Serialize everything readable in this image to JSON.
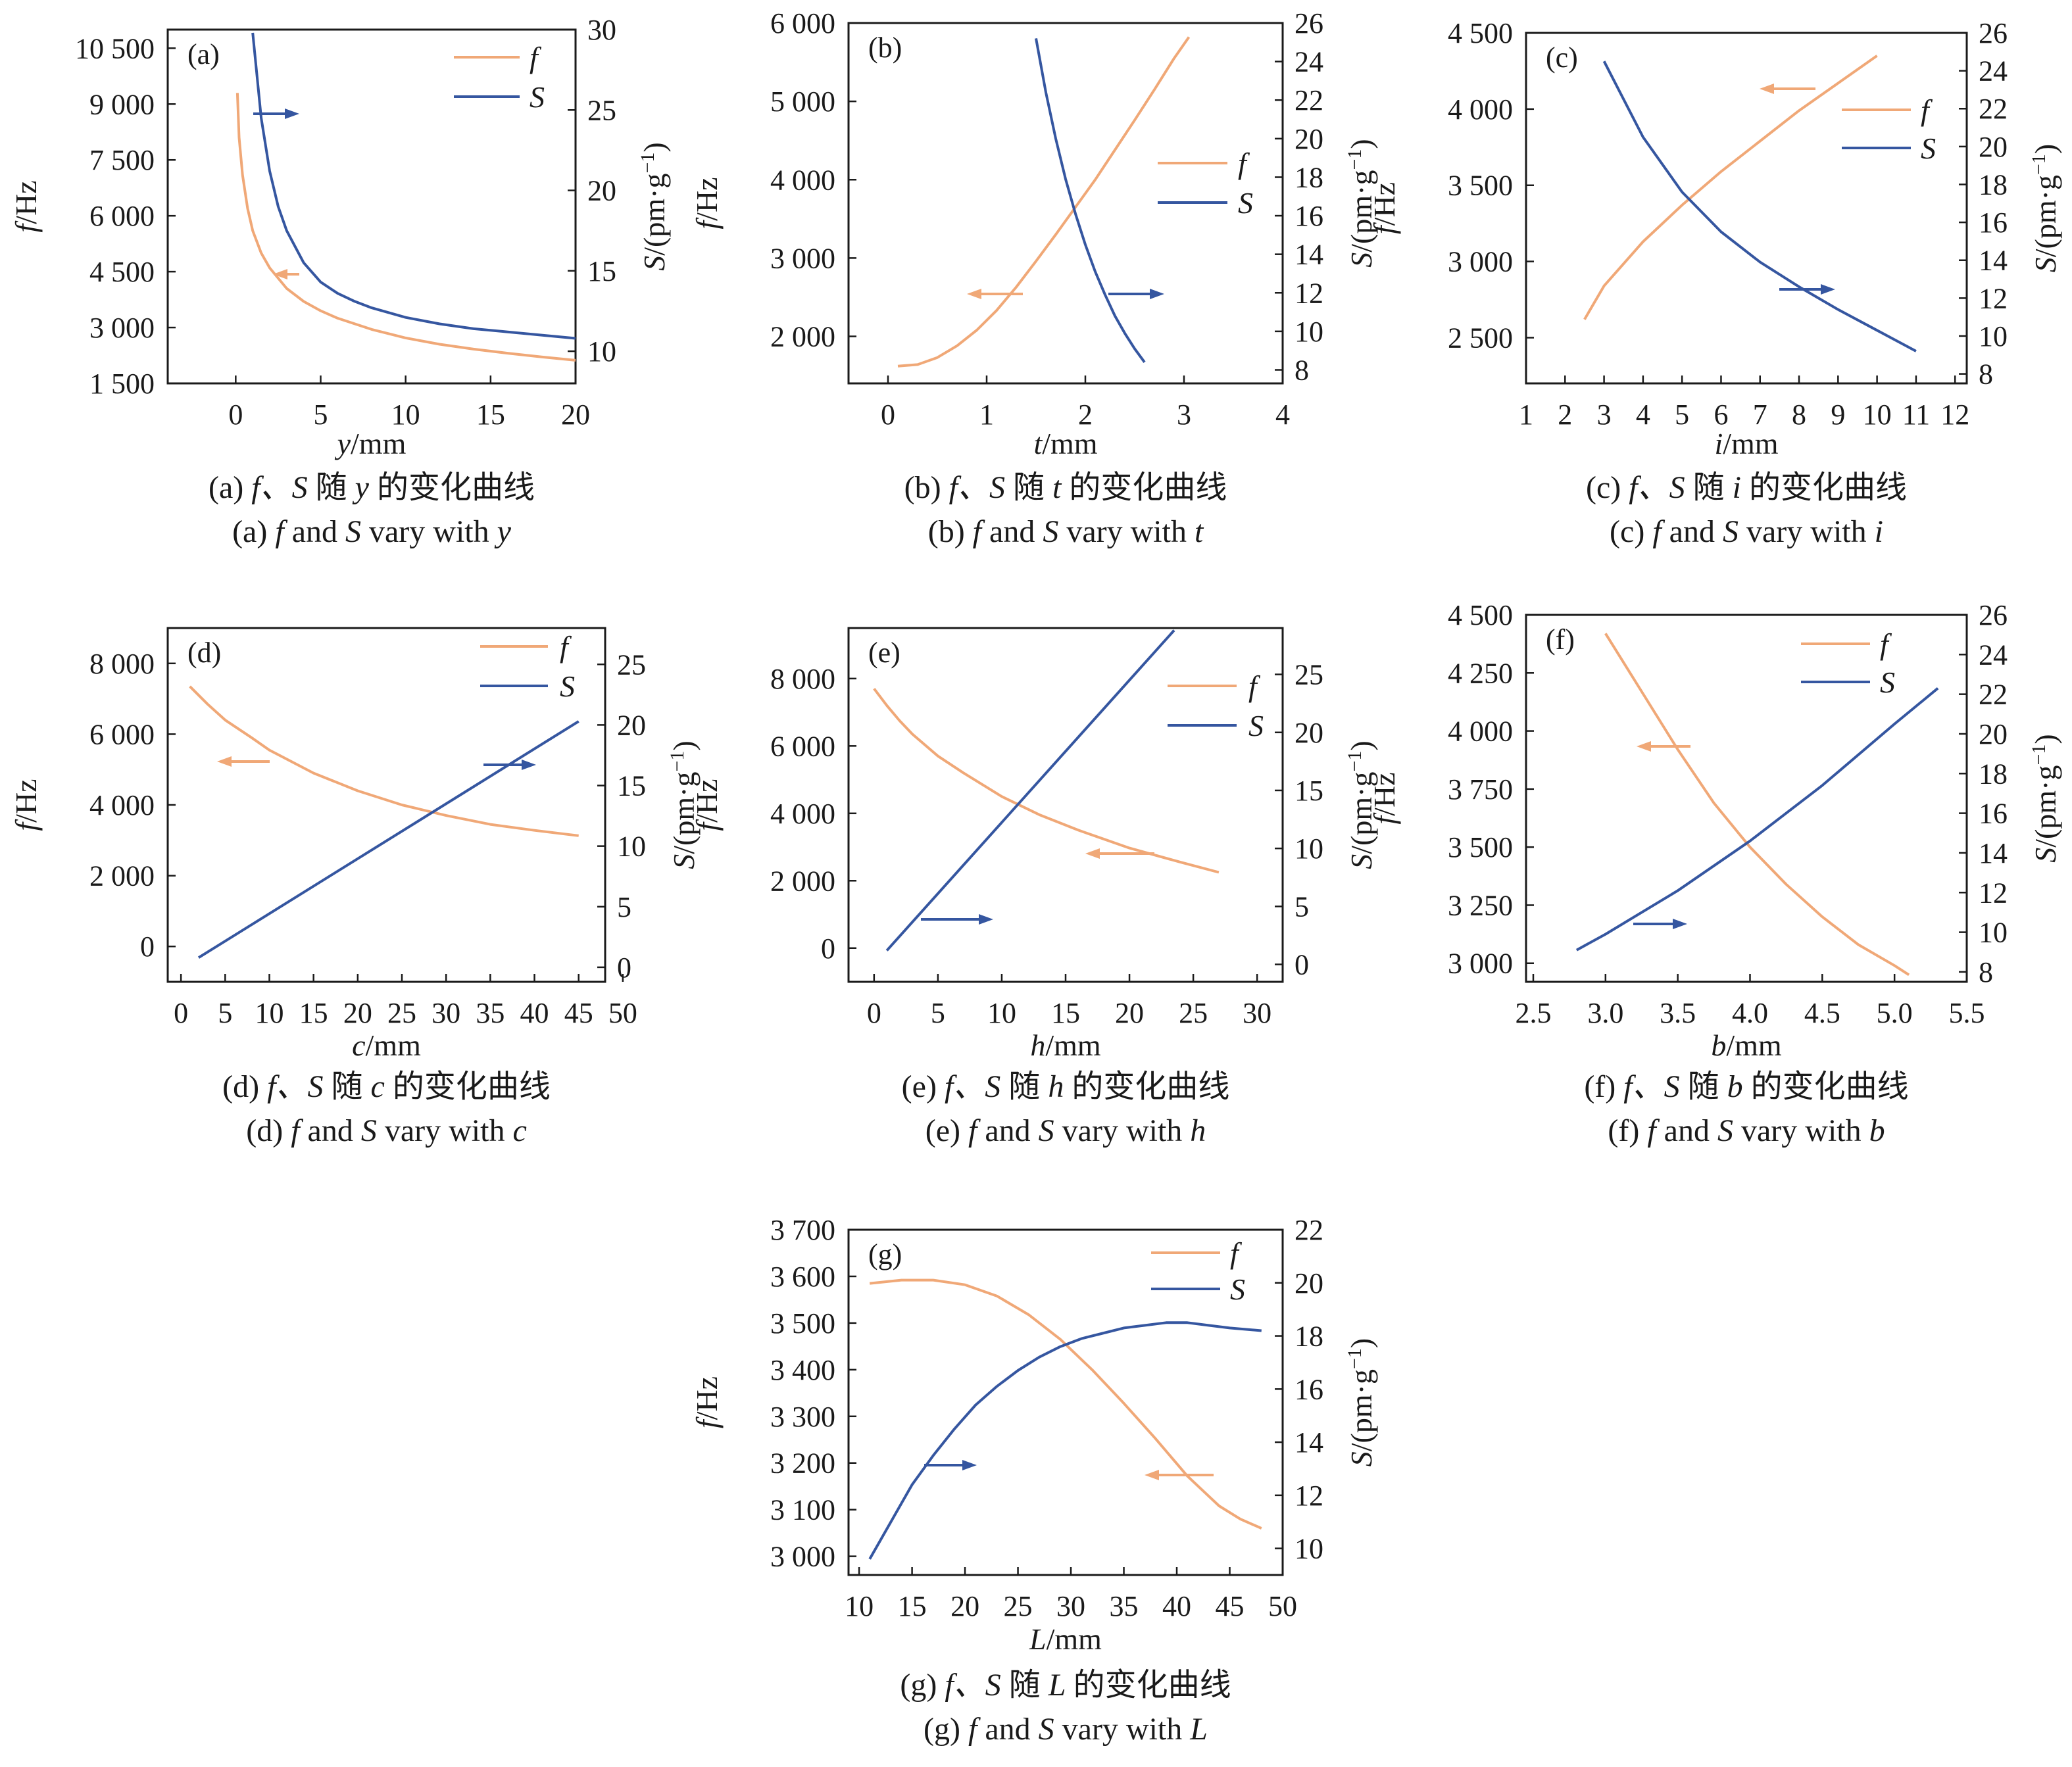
{
  "colors": {
    "f": "#f0a877",
    "S": "#3556a0",
    "axis": "#1a1a1a"
  },
  "chart_data": [
    {
      "panel": "(a)",
      "type": "line",
      "xlabel_var": "y",
      "xlabel_unit": "/mm",
      "ylabel_left_var": "f",
      "ylabel_left_unit": "/Hz",
      "ylabel_right_var": "S",
      "ylabel_right_unit": "/(pm·g",
      "ylabel_right_sup": "−1",
      "ylabel_right_close": ")",
      "xlim": [
        -4,
        20
      ],
      "ylim_left": [
        1500,
        11000
      ],
      "ylim_right": [
        8,
        30
      ],
      "xticks": [
        0,
        5,
        10,
        15,
        20
      ],
      "xtick_labels": [
        "0",
        "5",
        "10",
        "15",
        "20"
      ],
      "yticks_left": [
        1500,
        3000,
        4500,
        6000,
        7500,
        9000,
        10500
      ],
      "yticks_left_labels": [
        "1 500",
        "3 000",
        "4 500",
        "6 000",
        "7 500",
        "9 000",
        "10 500"
      ],
      "yticks_right": [
        10,
        15,
        20,
        25,
        30
      ],
      "yticks_right_labels": [
        "10",
        "15",
        "20",
        "25",
        "30"
      ],
      "series": [
        {
          "name": "f",
          "axis": "left",
          "x": [
            0.1,
            0.2,
            0.4,
            0.7,
            1,
            1.5,
            2,
            3,
            4,
            5,
            6,
            8,
            10,
            12,
            14,
            16,
            18,
            20
          ],
          "y": [
            9300,
            8100,
            7100,
            6200,
            5600,
            5000,
            4600,
            4050,
            3700,
            3450,
            3250,
            2950,
            2720,
            2550,
            2420,
            2310,
            2210,
            2120
          ]
        },
        {
          "name": "S",
          "axis": "right",
          "x": [
            1,
            1.5,
            2,
            2.5,
            3,
            4,
            5,
            6,
            7,
            8,
            10,
            12,
            14,
            16,
            18,
            20
          ],
          "y": [
            29.8,
            24.5,
            21.2,
            19.0,
            17.5,
            15.5,
            14.3,
            13.6,
            13.1,
            12.7,
            12.1,
            11.7,
            11.4,
            11.2,
            11.0,
            10.8
          ]
        }
      ],
      "legend": [
        "f",
        "S"
      ],
      "legend_position": "top-right",
      "caption_zh_prefix": "(a)",
      "caption_zh_fs": "f、S",
      "caption_zh_mid": "随",
      "caption_zh_var": "y",
      "caption_zh_suffix": "的变化曲线",
      "caption_en_prefix": "(a)",
      "caption_en_f": "f",
      "caption_en_and": "and",
      "caption_en_s": "S",
      "caption_en_vary": "vary with",
      "caption_en_var": "y"
    },
    {
      "panel": "(b)",
      "type": "line",
      "xlabel_var": "t",
      "xlabel_unit": "/mm",
      "ylabel_left_var": "f",
      "ylabel_left_unit": "/Hz",
      "ylabel_right_var": "S",
      "ylabel_right_unit": "/(pm·g",
      "ylabel_right_sup": "−1",
      "ylabel_right_close": ")",
      "xlim": [
        -0.4,
        4
      ],
      "ylim_left": [
        1400,
        6000
      ],
      "ylim_right": [
        7.3,
        26
      ],
      "xticks": [
        0,
        1,
        2,
        3,
        4
      ],
      "xtick_labels": [
        "0",
        "1",
        "2",
        "3",
        "4"
      ],
      "yticks_left": [
        2000,
        3000,
        4000,
        5000,
        6000
      ],
      "yticks_left_labels": [
        "2 000",
        "3 000",
        "4 000",
        "5 000",
        "6 000"
      ],
      "yticks_right": [
        8,
        10,
        12,
        14,
        16,
        18,
        20,
        22,
        24,
        26
      ],
      "yticks_right_labels": [
        "8",
        "10",
        "12",
        "14",
        "16",
        "18",
        "20",
        "22",
        "24",
        "26"
      ],
      "series": [
        {
          "name": "f",
          "axis": "left",
          "x": [
            0.1,
            0.3,
            0.5,
            0.7,
            0.9,
            1.1,
            1.3,
            1.5,
            1.7,
            1.9,
            2.1,
            2.3,
            2.5,
            2.7,
            2.9,
            3.05
          ],
          "y": [
            1620,
            1640,
            1730,
            1880,
            2080,
            2330,
            2630,
            2960,
            3300,
            3650,
            4000,
            4380,
            4760,
            5150,
            5550,
            5820
          ]
        },
        {
          "name": "S",
          "axis": "right",
          "x": [
            1.5,
            1.6,
            1.7,
            1.8,
            1.9,
            2.0,
            2.1,
            2.2,
            2.3,
            2.4,
            2.5,
            2.6
          ],
          "y": [
            25.2,
            22.4,
            20.0,
            17.9,
            16.1,
            14.5,
            13.1,
            11.9,
            10.8,
            9.9,
            9.1,
            8.4
          ]
        }
      ],
      "legend": [
        "f",
        "S"
      ],
      "legend_position": "center-right",
      "caption_zh_prefix": "(b)",
      "caption_zh_fs": "f、S",
      "caption_zh_mid": "随",
      "caption_zh_var": "t",
      "caption_zh_suffix": "的变化曲线",
      "caption_en_prefix": "(b)",
      "caption_en_f": "f",
      "caption_en_and": "and",
      "caption_en_s": "S",
      "caption_en_vary": "vary with",
      "caption_en_var": "t"
    },
    {
      "panel": "(c)",
      "type": "line",
      "xlabel_var": "i",
      "xlabel_unit": "/mm",
      "ylabel_left_var": "f",
      "ylabel_left_unit": "/Hz",
      "ylabel_right_var": "S",
      "ylabel_right_unit": "/(pm·g",
      "ylabel_right_sup": "−1",
      "ylabel_right_close": ")",
      "xlim": [
        1,
        12.3
      ],
      "ylim_left": [
        2200,
        4500
      ],
      "ylim_right": [
        7.5,
        26
      ],
      "xticks": [
        1,
        2,
        3,
        4,
        5,
        6,
        7,
        8,
        9,
        10,
        11,
        12
      ],
      "xtick_labels": [
        "1",
        "2",
        "3",
        "4",
        "5",
        "6",
        "7",
        "8",
        "9",
        "10",
        "11",
        "12"
      ],
      "yticks_left": [
        2500,
        3000,
        3500,
        4000,
        4500
      ],
      "yticks_left_labels": [
        "2 500",
        "3 000",
        "3 500",
        "4 000",
        "4 500"
      ],
      "yticks_right": [
        8,
        10,
        12,
        14,
        16,
        18,
        20,
        22,
        24,
        26
      ],
      "yticks_right_labels": [
        "8",
        "10",
        "12",
        "14",
        "16",
        "18",
        "20",
        "22",
        "24",
        "26"
      ],
      "series": [
        {
          "name": "f",
          "axis": "left",
          "x": [
            2.5,
            3,
            4,
            5,
            6,
            7,
            8,
            9,
            10
          ],
          "y": [
            2620,
            2840,
            3130,
            3370,
            3590,
            3790,
            3990,
            4170,
            4350
          ]
        },
        {
          "name": "S",
          "axis": "right",
          "x": [
            3,
            4,
            5,
            6,
            7,
            8,
            9,
            10,
            11
          ],
          "y": [
            24.5,
            20.5,
            17.6,
            15.5,
            13.9,
            12.6,
            11.4,
            10.3,
            9.2
          ]
        }
      ],
      "legend": [
        "f",
        "S"
      ],
      "legend_position": "top-right",
      "caption_zh_prefix": "(c)",
      "caption_zh_fs": "f、S",
      "caption_zh_mid": "随",
      "caption_zh_var": "i",
      "caption_zh_suffix": "的变化曲线",
      "caption_en_prefix": "(c)",
      "caption_en_f": "f",
      "caption_en_and": "and",
      "caption_en_s": "S",
      "caption_en_vary": "vary with",
      "caption_en_var": "i"
    },
    {
      "panel": "(d)",
      "type": "line",
      "xlabel_var": "c",
      "xlabel_unit": "/mm",
      "ylabel_left_var": "f",
      "ylabel_left_unit": "/Hz",
      "ylabel_right_var": "S",
      "ylabel_right_unit": "/(pm·g",
      "ylabel_right_sup": "−1",
      "ylabel_right_close": ")",
      "xlim": [
        -1.5,
        48
      ],
      "ylim_left": [
        -1000,
        9000
      ],
      "ylim_right": [
        -1.2,
        28
      ],
      "xticks": [
        0,
        5,
        10,
        15,
        20,
        25,
        30,
        35,
        40,
        45,
        50
      ],
      "xtick_labels": [
        "0",
        "5",
        "10",
        "15",
        "20",
        "25",
        "30",
        "35",
        "40",
        "45",
        "50"
      ],
      "yticks_left": [
        0,
        2000,
        4000,
        6000,
        8000
      ],
      "yticks_left_labels": [
        "0",
        "2 000",
        "4 000",
        "6 000",
        "8 000"
      ],
      "yticks_right": [
        0,
        5,
        10,
        15,
        20,
        25
      ],
      "yticks_right_labels": [
        "0",
        "5",
        "10",
        "15",
        "20",
        "25"
      ],
      "series": [
        {
          "name": "f",
          "axis": "left",
          "x": [
            1,
            3,
            5,
            8,
            10,
            15,
            20,
            25,
            30,
            35,
            40,
            45
          ],
          "y": [
            7350,
            6850,
            6400,
            5900,
            5550,
            4900,
            4400,
            4000,
            3700,
            3450,
            3280,
            3130
          ]
        },
        {
          "name": "S",
          "axis": "right",
          "x": [
            2,
            45
          ],
          "y": [
            0.8,
            20.3
          ]
        }
      ],
      "legend": [
        "f",
        "S"
      ],
      "legend_position": "top-right",
      "caption_zh_prefix": "(d)",
      "caption_zh_fs": "f、S",
      "caption_zh_mid": "随",
      "caption_zh_var": "c",
      "caption_zh_suffix": "的变化曲线",
      "caption_en_prefix": "(d)",
      "caption_en_f": "f",
      "caption_en_and": "and",
      "caption_en_s": "S",
      "caption_en_vary": "vary with",
      "caption_en_var": "c"
    },
    {
      "panel": "(e)",
      "type": "line",
      "xlabel_var": "h",
      "xlabel_unit": "/mm",
      "ylabel_left_var": "f",
      "ylabel_left_unit": "/Hz",
      "ylabel_right_var": "S",
      "ylabel_right_unit": "/(pm·g",
      "ylabel_right_sup": "−1",
      "ylabel_right_close": ")",
      "xlim": [
        -2,
        32
      ],
      "ylim_left": [
        -1000,
        9500
      ],
      "ylim_right": [
        -1.5,
        29
      ],
      "xticks": [
        0,
        5,
        10,
        15,
        20,
        25,
        30
      ],
      "xtick_labels": [
        "0",
        "5",
        "10",
        "15",
        "20",
        "25",
        "30"
      ],
      "yticks_left": [
        0,
        2000,
        4000,
        6000,
        8000
      ],
      "yticks_left_labels": [
        "0",
        "2 000",
        "4 000",
        "6 000",
        "8 000"
      ],
      "yticks_right": [
        0,
        5,
        10,
        15,
        20,
        25
      ],
      "yticks_right_labels": [
        "0",
        "5",
        "10",
        "15",
        "20",
        "25"
      ],
      "series": [
        {
          "name": "f",
          "axis": "left",
          "x": [
            0,
            1,
            2,
            3,
            5,
            7,
            10,
            13,
            16,
            20,
            24,
            27
          ],
          "y": [
            7700,
            7200,
            6750,
            6350,
            5700,
            5200,
            4500,
            3950,
            3500,
            2970,
            2550,
            2250
          ]
        },
        {
          "name": "S",
          "axis": "right",
          "x": [
            1,
            23.5
          ],
          "y": [
            1.2,
            28.8
          ]
        }
      ],
      "legend": [
        "f",
        "S"
      ],
      "legend_position": "top-right",
      "caption_zh_prefix": "(e)",
      "caption_zh_fs": "f、S",
      "caption_zh_mid": "随",
      "caption_zh_var": "h",
      "caption_zh_suffix": "的变化曲线",
      "caption_en_prefix": "(e)",
      "caption_en_f": "f",
      "caption_en_and": "and",
      "caption_en_s": "S",
      "caption_en_vary": "vary with",
      "caption_en_var": "h"
    },
    {
      "panel": "(f)",
      "type": "line",
      "xlabel_var": "b",
      "xlabel_unit": "/mm",
      "ylabel_left_var": "f",
      "ylabel_left_unit": "/Hz",
      "ylabel_right_var": "S",
      "ylabel_right_unit": "/(pm·g",
      "ylabel_right_sup": "−1",
      "ylabel_right_close": ")",
      "xlim": [
        2.45,
        5.5
      ],
      "ylim_left": [
        2920,
        4500
      ],
      "ylim_right": [
        7.5,
        26
      ],
      "xticks": [
        2.5,
        3.0,
        3.5,
        4.0,
        4.5,
        5.0,
        5.5
      ],
      "xtick_labels": [
        "2.5",
        "3.0",
        "3.5",
        "4.0",
        "4.5",
        "5.0",
        "5.5"
      ],
      "yticks_left": [
        3000,
        3250,
        3500,
        3750,
        4000,
        4250,
        4500
      ],
      "yticks_left_labels": [
        "3 000",
        "3 250",
        "3 500",
        "3 750",
        "4 000",
        "4 250",
        "4 500"
      ],
      "yticks_right": [
        8,
        10,
        12,
        14,
        16,
        18,
        20,
        22,
        24,
        26
      ],
      "yticks_right_labels": [
        "8",
        "10",
        "12",
        "14",
        "16",
        "18",
        "20",
        "22",
        "24",
        "26"
      ],
      "series": [
        {
          "name": "f",
          "axis": "left",
          "x": [
            3.0,
            3.25,
            3.5,
            3.75,
            4.0,
            4.25,
            4.5,
            4.75,
            5.0,
            5.1
          ],
          "y": [
            4420,
            4170,
            3920,
            3690,
            3500,
            3340,
            3200,
            3080,
            2990,
            2950
          ]
        },
        {
          "name": "S",
          "axis": "right",
          "x": [
            2.8,
            3.0,
            3.5,
            4.0,
            4.5,
            5.0,
            5.3
          ],
          "y": [
            9.1,
            9.9,
            12.1,
            14.6,
            17.4,
            20.5,
            22.3
          ]
        }
      ],
      "legend": [
        "f",
        "S"
      ],
      "legend_position": "top-right",
      "caption_zh_prefix": "(f)",
      "caption_zh_fs": "f、S",
      "caption_zh_mid": "随",
      "caption_zh_var": "b",
      "caption_zh_suffix": "的变化曲线",
      "caption_en_prefix": "(f)",
      "caption_en_f": "f",
      "caption_en_and": "and",
      "caption_en_s": "S",
      "caption_en_vary": "vary with",
      "caption_en_var": "b"
    },
    {
      "panel": "(g)",
      "type": "line",
      "xlabel_var": "L",
      "xlabel_unit": "/mm",
      "ylabel_left_var": "f",
      "ylabel_left_unit": "/Hz",
      "ylabel_right_var": "S",
      "ylabel_right_unit": "/(pm·g",
      "ylabel_right_sup": "−1",
      "ylabel_right_close": ")",
      "xlim": [
        9,
        50
      ],
      "ylim_left": [
        2960,
        3700
      ],
      "ylim_right": [
        9,
        22
      ],
      "xticks": [
        10,
        15,
        20,
        25,
        30,
        35,
        40,
        45,
        50
      ],
      "xtick_labels": [
        "10",
        "15",
        "20",
        "25",
        "30",
        "35",
        "40",
        "45",
        "50"
      ],
      "yticks_left": [
        3000,
        3100,
        3200,
        3300,
        3400,
        3500,
        3600,
        3700
      ],
      "yticks_left_labels": [
        "3 000",
        "3 100",
        "3 200",
        "3 300",
        "3 400",
        "3 500",
        "3 600",
        "3 700"
      ],
      "yticks_right": [
        10,
        12,
        14,
        16,
        18,
        20,
        22
      ],
      "yticks_right_labels": [
        "10",
        "12",
        "14",
        "16",
        "18",
        "20",
        "22"
      ],
      "series": [
        {
          "name": "f",
          "axis": "left",
          "x": [
            11,
            14,
            17,
            20,
            23,
            26,
            29,
            32,
            35,
            38,
            41,
            44,
            46,
            48
          ],
          "y": [
            3585,
            3592,
            3592,
            3582,
            3558,
            3518,
            3465,
            3400,
            3328,
            3252,
            3172,
            3108,
            3080,
            3060
          ]
        },
        {
          "name": "S",
          "axis": "right",
          "x": [
            11,
            13,
            15,
            17,
            19,
            21,
            23,
            25,
            27,
            29,
            31,
            33,
            35,
            37,
            39,
            41,
            43,
            45,
            48
          ],
          "y": [
            9.6,
            11.0,
            12.4,
            13.5,
            14.5,
            15.4,
            16.1,
            16.7,
            17.2,
            17.6,
            17.9,
            18.1,
            18.3,
            18.4,
            18.5,
            18.5,
            18.4,
            18.3,
            18.2
          ]
        }
      ],
      "legend": [
        "f",
        "S"
      ],
      "legend_position": "top-right",
      "caption_zh_prefix": "(g)",
      "caption_zh_fs": "f、S",
      "caption_zh_mid": "随",
      "caption_zh_var": "L",
      "caption_zh_suffix": "的变化曲线",
      "caption_en_prefix": "(g)",
      "caption_en_f": "f",
      "caption_en_and": "and",
      "caption_en_s": "S",
      "caption_en_vary": "vary with",
      "caption_en_var": "L"
    }
  ]
}
